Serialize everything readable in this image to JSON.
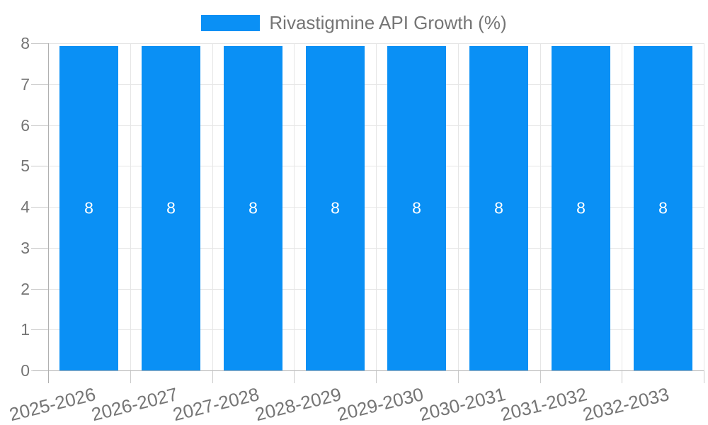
{
  "chart_data": {
    "type": "bar",
    "title": "",
    "legend": {
      "position": "top",
      "items": [
        {
          "label": "Rivastigmine API Growth (%)",
          "color": "#0a90f5"
        }
      ]
    },
    "categories": [
      "2025-2026",
      "2026-2027",
      "2027-2028",
      "2028-2029",
      "2029-2030",
      "2030-2031",
      "2031-2032",
      "2032-2033"
    ],
    "series": [
      {
        "name": "Rivastigmine API Growth (%)",
        "color": "#0a90f5",
        "values": [
          8,
          8,
          8,
          8,
          8,
          8,
          8,
          8
        ]
      }
    ],
    "value_labels": [
      "8",
      "8",
      "8",
      "8",
      "8",
      "8",
      "8",
      "8"
    ],
    "xlabel": "",
    "ylabel": "",
    "ylim": [
      0,
      8
    ],
    "yticks": [
      0,
      1,
      2,
      3,
      4,
      5,
      6,
      7,
      8
    ],
    "grid": true,
    "x_label_rotation_deg": -14,
    "colors": {
      "bar": "#0a90f5",
      "grid": "#e6e6e6",
      "tick": "#cbcbcb",
      "axis": "#b0b0b0",
      "label_text": "#757575",
      "value_text": "#ffffff",
      "background": "#ffffff"
    }
  }
}
